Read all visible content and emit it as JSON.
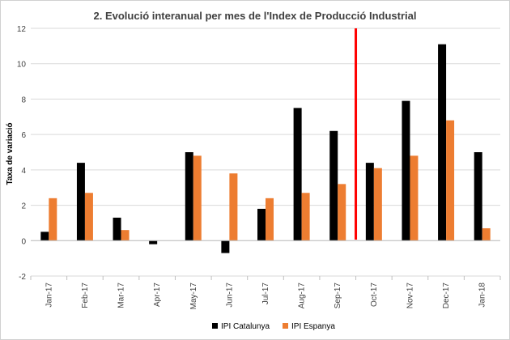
{
  "chart_data": {
    "type": "bar",
    "title": "2. Evolució interanual per mes de l'Index de Producció Industrial",
    "xlabel": "",
    "ylabel": "Taxa de variació",
    "categories": [
      "Jan-17",
      "Feb-17",
      "Mar-17",
      "Apr-17",
      "May-17",
      "Jun-17",
      "Jul-17",
      "Aug-17",
      "Sep-17",
      "Oct-17",
      "Nov-17",
      "Dec-17",
      "Jan-18"
    ],
    "series": [
      {
        "name": "IPI Catalunya",
        "color": "#000000",
        "values": [
          0.5,
          4.4,
          1.3,
          -0.2,
          5.0,
          -0.7,
          1.8,
          7.5,
          6.2,
          4.4,
          7.9,
          11.1,
          5.0
        ]
      },
      {
        "name": "IPI Espanya",
        "color": "#ED7D31",
        "values": [
          2.4,
          2.7,
          0.6,
          0.0,
          4.8,
          3.8,
          2.4,
          2.7,
          3.2,
          4.1,
          4.8,
          6.8,
          0.7
        ]
      }
    ],
    "ylim": [
      -2,
      12
    ],
    "yticks": [
      -2,
      0,
      2,
      4,
      6,
      8,
      10,
      12
    ],
    "grid": true,
    "legend": "bottom",
    "marker_line": {
      "between": [
        "Sep-17",
        "Oct-17"
      ],
      "color": "#FF0000"
    }
  }
}
